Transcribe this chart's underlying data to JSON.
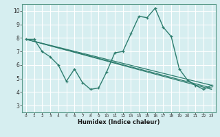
{
  "xlabel": "Humidex (Indice chaleur)",
  "ylabel": "",
  "bg_color": "#d6eef0",
  "grid_color": "#ffffff",
  "line_color": "#2e7d6e",
  "xlim": [
    -0.5,
    23.5
  ],
  "ylim": [
    2.5,
    10.5
  ],
  "x_ticks": [
    0,
    1,
    2,
    3,
    4,
    5,
    6,
    7,
    8,
    9,
    10,
    11,
    12,
    13,
    14,
    15,
    16,
    17,
    18,
    19,
    20,
    21,
    22,
    23
  ],
  "y_ticks": [
    3,
    4,
    5,
    6,
    7,
    8,
    9,
    10
  ],
  "line1_x": [
    0,
    1,
    2,
    3,
    4,
    5,
    6,
    7,
    8,
    9,
    10,
    11,
    12,
    13,
    14,
    15,
    16,
    17,
    18,
    19,
    20,
    21,
    22,
    23
  ],
  "line1_y": [
    7.9,
    7.9,
    7.0,
    6.6,
    6.0,
    4.8,
    5.7,
    4.7,
    4.2,
    4.3,
    5.5,
    6.9,
    7.0,
    8.3,
    9.6,
    9.5,
    10.2,
    8.8,
    8.1,
    5.7,
    4.9,
    4.5,
    4.2,
    4.5
  ],
  "line2_x": [
    0,
    23
  ],
  "line2_y": [
    7.9,
    4.5
  ],
  "line3_x": [
    0,
    23
  ],
  "line3_y": [
    7.9,
    4.2
  ],
  "line4_x": [
    0,
    23
  ],
  "line4_y": [
    7.9,
    4.3
  ]
}
